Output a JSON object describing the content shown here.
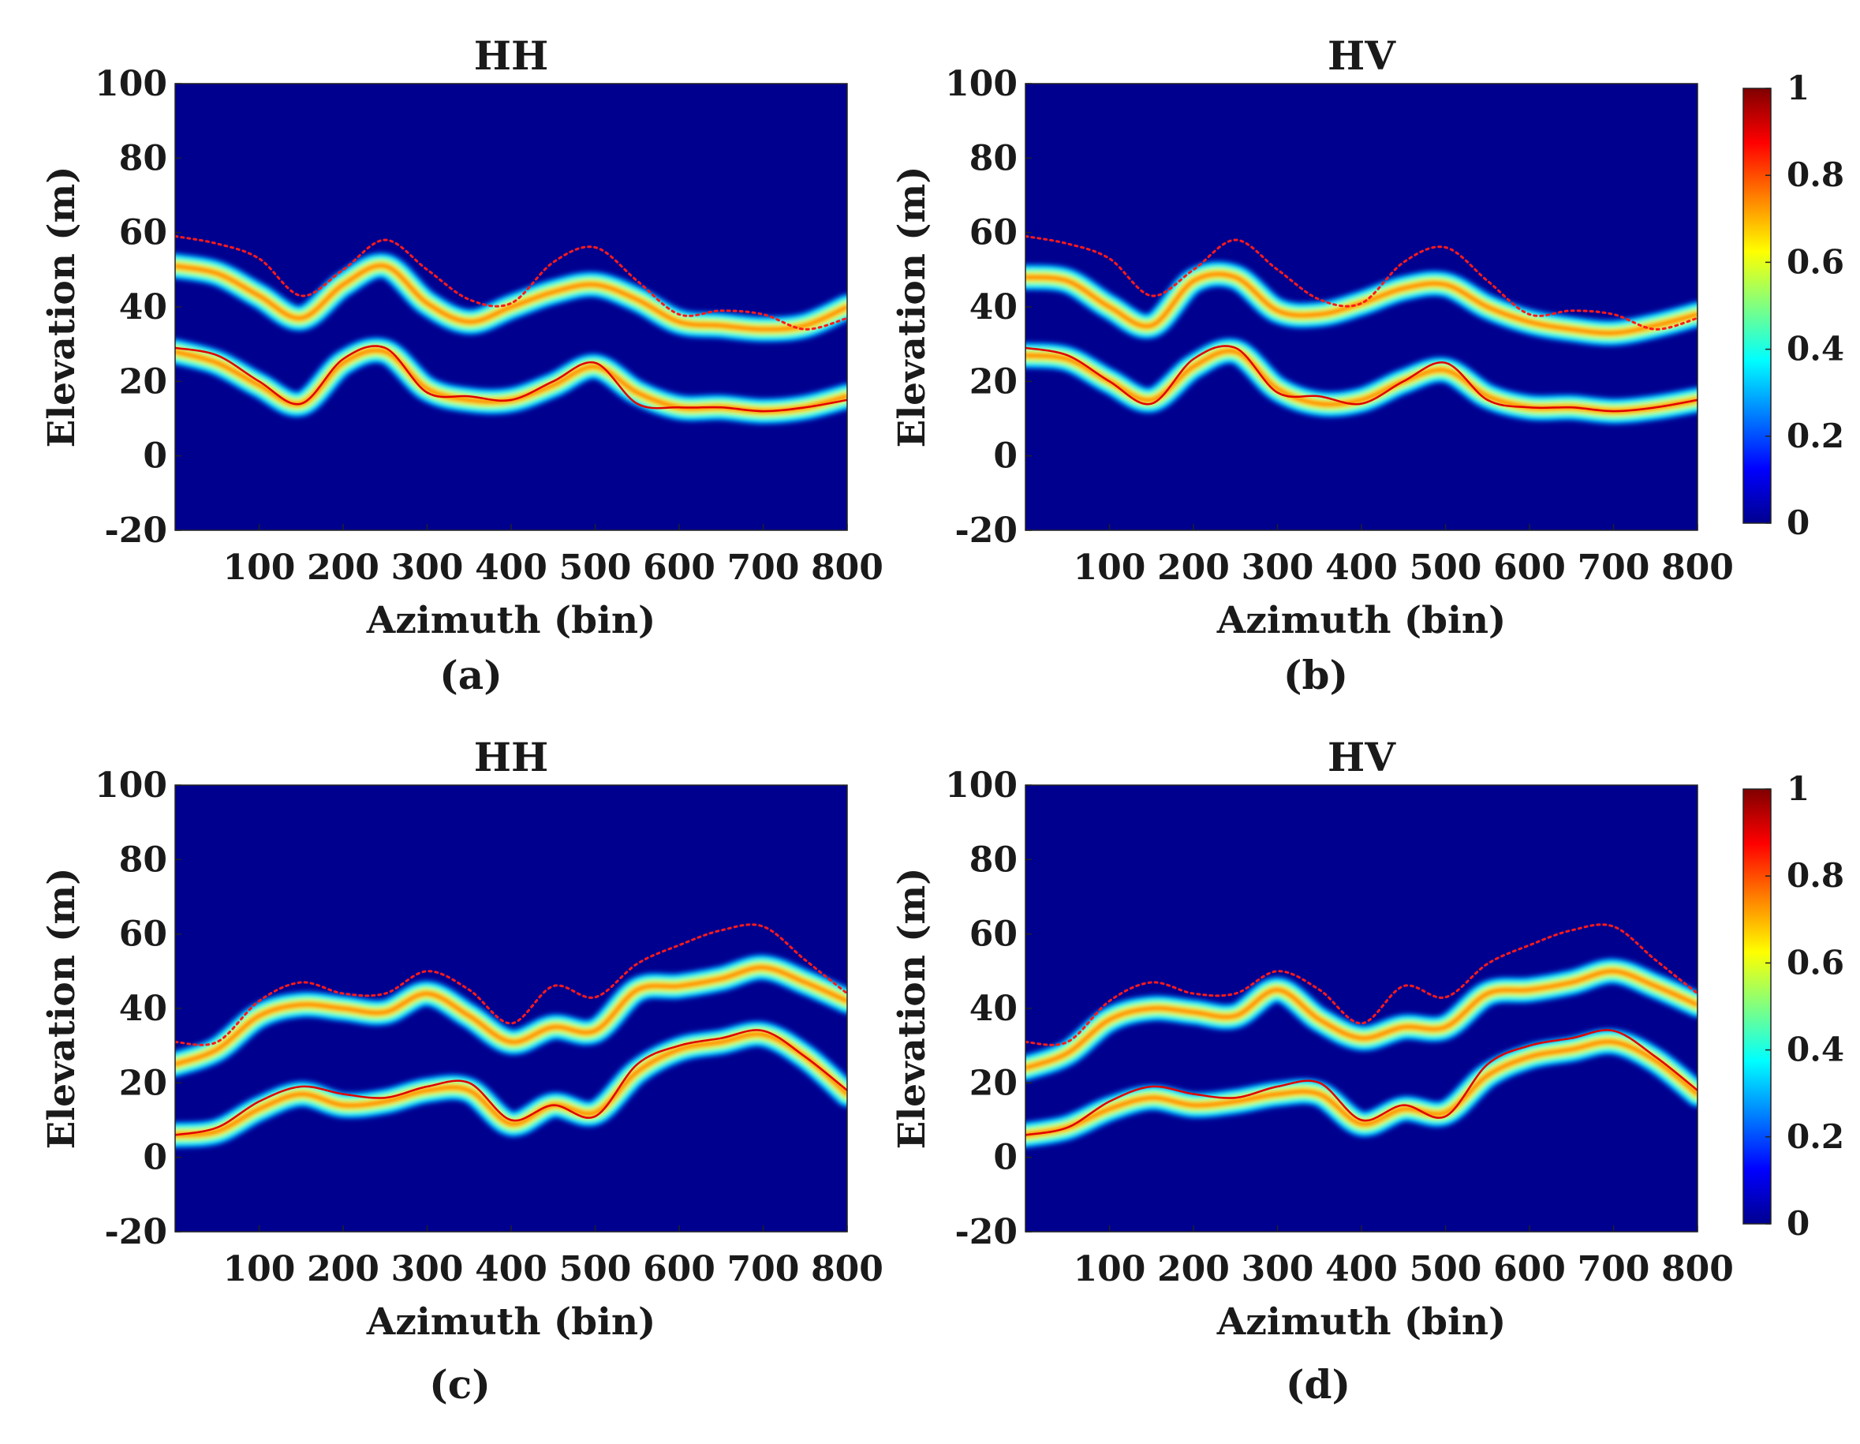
{
  "colormap": [
    "#00008f",
    "#0000ff",
    "#0080ff",
    "#00ffff",
    "#80ff80",
    "#ffff00",
    "#ff8000",
    "#ff0000",
    "#800000"
  ],
  "colorbar": {
    "ticks": [
      "0",
      "0.2",
      "0.4",
      "0.6",
      "0.8",
      "1"
    ]
  },
  "chart_data": [
    {
      "type": "heatmap",
      "panel_label": "(a)",
      "title": "HH",
      "xlabel": "Azimuth (bin)",
      "ylabel": "Elevation (m)",
      "xlim": [
        0,
        800
      ],
      "ylim": [
        -20,
        100
      ],
      "xticks": [
        100,
        200,
        300,
        400,
        500,
        600,
        700,
        800
      ],
      "yticks": [
        100,
        80,
        60,
        40,
        20,
        0,
        -20
      ],
      "x": [
        0,
        50,
        100,
        150,
        200,
        250,
        300,
        350,
        400,
        450,
        500,
        550,
        600,
        650,
        700,
        750,
        800
      ],
      "canopy_band": [
        51,
        49,
        43,
        37,
        46,
        51,
        41,
        36,
        40,
        44,
        46,
        42,
        36,
        35,
        34,
        35,
        40
      ],
      "ground_band": [
        28,
        25,
        19,
        14,
        25,
        28,
        18,
        15,
        15,
        19,
        24,
        17,
        13,
        13,
        12,
        13,
        16
      ],
      "red_dotted": [
        59,
        57,
        53,
        43,
        50,
        58,
        50,
        42,
        41,
        52,
        56,
        47,
        38,
        39,
        38,
        34,
        37
      ],
      "red_solid": [
        29,
        27,
        20,
        14,
        26,
        29,
        17,
        16,
        15,
        20,
        25,
        14,
        13,
        13,
        12,
        13,
        15
      ]
    },
    {
      "type": "heatmap",
      "panel_label": "(b)",
      "title": "HV",
      "xlabel": "Azimuth (bin)",
      "ylabel": "Elevation (m)",
      "xlim": [
        0,
        800
      ],
      "ylim": [
        -20,
        100
      ],
      "xticks": [
        100,
        200,
        300,
        400,
        500,
        600,
        700,
        800
      ],
      "yticks": [
        100,
        80,
        60,
        40,
        20,
        0,
        -20
      ],
      "x": [
        0,
        50,
        100,
        150,
        200,
        250,
        300,
        350,
        400,
        450,
        500,
        550,
        600,
        650,
        700,
        750,
        800
      ],
      "canopy_band": [
        48,
        47,
        40,
        35,
        47,
        48,
        39,
        38,
        41,
        45,
        46,
        40,
        36,
        34,
        33,
        35,
        38
      ],
      "ground_band": [
        27,
        26,
        20,
        15,
        24,
        28,
        18,
        14,
        15,
        20,
        23,
        16,
        13,
        13,
        12,
        13,
        15
      ],
      "red_dotted": [
        59,
        57,
        53,
        43,
        50,
        58,
        50,
        42,
        41,
        52,
        56,
        47,
        38,
        39,
        38,
        34,
        37
      ],
      "red_solid": [
        29,
        27,
        20,
        14,
        26,
        29,
        17,
        16,
        14,
        20,
        25,
        15,
        13,
        13,
        12,
        13,
        15
      ]
    },
    {
      "type": "heatmap",
      "panel_label": "(c)",
      "title": "HH",
      "xlabel": "Azimuth (bin)",
      "ylabel": "Elevation (m)",
      "xlim": [
        0,
        800
      ],
      "ylim": [
        -20,
        100
      ],
      "xticks": [
        100,
        200,
        300,
        400,
        500,
        600,
        700,
        800
      ],
      "yticks": [
        100,
        80,
        60,
        40,
        20,
        0,
        -20
      ],
      "x": [
        0,
        50,
        100,
        150,
        200,
        250,
        300,
        350,
        400,
        450,
        500,
        550,
        600,
        650,
        700,
        750,
        800
      ],
      "canopy_band": [
        25,
        29,
        38,
        41,
        40,
        39,
        44,
        38,
        31,
        35,
        34,
        45,
        46,
        48,
        51,
        47,
        42
      ],
      "ground_band": [
        6,
        7,
        13,
        17,
        14,
        15,
        18,
        18,
        9,
        14,
        12,
        23,
        29,
        31,
        33,
        27,
        17
      ],
      "red_dotted": [
        31,
        31,
        42,
        47,
        44,
        44,
        50,
        45,
        36,
        46,
        43,
        52,
        57,
        61,
        62,
        53,
        44
      ],
      "red_solid": [
        6,
        8,
        15,
        19,
        17,
        16,
        19,
        20,
        10,
        14,
        11,
        25,
        30,
        32,
        34,
        27,
        18
      ]
    },
    {
      "type": "heatmap",
      "panel_label": "(d)",
      "title": "HV",
      "xlabel": "Azimuth (bin)",
      "ylabel": "Elevation (m)",
      "xlim": [
        0,
        800
      ],
      "ylim": [
        -20,
        100
      ],
      "xticks": [
        100,
        200,
        300,
        400,
        500,
        600,
        700,
        800
      ],
      "yticks": [
        100,
        80,
        60,
        40,
        20,
        0,
        -20
      ],
      "x": [
        0,
        50,
        100,
        150,
        200,
        250,
        300,
        350,
        400,
        450,
        500,
        550,
        600,
        650,
        700,
        750,
        800
      ],
      "canopy_band": [
        24,
        28,
        37,
        40,
        39,
        38,
        45,
        37,
        32,
        35,
        35,
        44,
        45,
        47,
        50,
        46,
        41
      ],
      "ground_band": [
        6,
        8,
        13,
        16,
        14,
        15,
        17,
        17,
        9,
        13,
        12,
        22,
        27,
        29,
        31,
        26,
        17
      ],
      "red_dotted": [
        31,
        31,
        42,
        47,
        44,
        44,
        50,
        45,
        36,
        46,
        43,
        52,
        57,
        61,
        62,
        53,
        44
      ],
      "red_solid": [
        6,
        8,
        15,
        19,
        17,
        16,
        19,
        20,
        10,
        14,
        11,
        25,
        30,
        32,
        34,
        27,
        18
      ]
    }
  ]
}
